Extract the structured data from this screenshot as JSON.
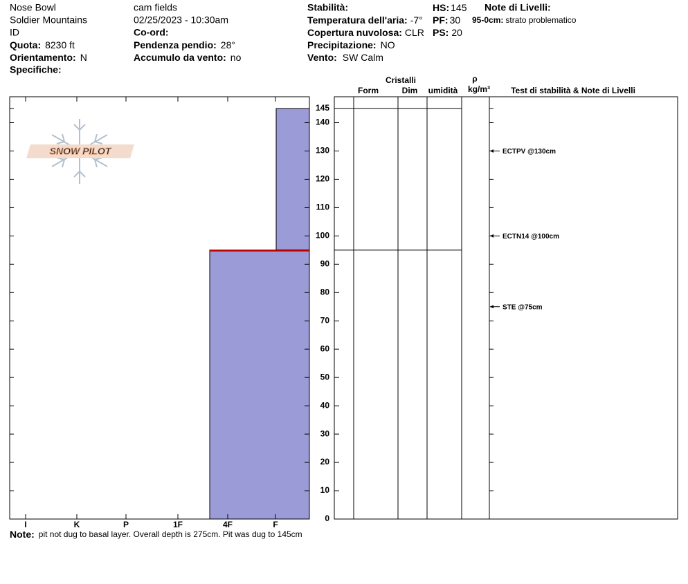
{
  "header": {
    "site": "Nose Bowl",
    "range": "Soldier Mountains",
    "state": "ID",
    "elevation": {
      "label": "Quota:",
      "value": "8230 ft"
    },
    "aspect": {
      "label": "Orientamento:",
      "value": "N"
    },
    "specifics": {
      "label": "Specifiche:"
    },
    "observer": "cam fields",
    "datetime": "02/25/2023 - 10:30am",
    "coords": {
      "label": "Co-ord:"
    },
    "slope": {
      "label": "Pendenza pendio:",
      "value": "28°"
    },
    "wind_loading": {
      "label": "Accumulo da vento:",
      "value": "no"
    },
    "stability": {
      "label": "Stabilità:"
    },
    "air_temp": {
      "label": "Temperatura dell'aria:",
      "value": "-7°"
    },
    "sky": {
      "label": "Copertura nuvolosa:",
      "value": "CLR"
    },
    "precip": {
      "label": "Precipitazione:",
      "value": "NO"
    },
    "wind": {
      "label": "Vento:",
      "value": "SW Calm"
    },
    "hs": {
      "label": "HS:",
      "value": "145"
    },
    "pf": {
      "label": "PF:",
      "value": "30"
    },
    "ps": {
      "label": "PS:",
      "value": "20"
    },
    "layer_notes": {
      "title": "Note di Livelli:",
      "items": [
        {
          "range": "95-0cm:",
          "text": "strato problematico"
        }
      ]
    }
  },
  "logo": "SNOW PILOT",
  "note": {
    "label": "Note:",
    "text": "pit not dug to basal layer. Overall depth is 275cm. Pit was dug to 145cm"
  },
  "table_headers": {
    "crystals": "Cristalli",
    "form": "Form",
    "size": "Dim",
    "moisture": "umidità",
    "density": "ρ",
    "density_unit": "kg/m³",
    "tests": "Test di stabilità & Note di Livelli"
  },
  "profile": {
    "ylim": [
      0,
      145
    ],
    "yticks": [
      0,
      10,
      20,
      30,
      40,
      50,
      60,
      70,
      80,
      90,
      100,
      110,
      120,
      130,
      140,
      145
    ],
    "hardness_scale": [
      "I",
      "K",
      "P",
      "1F",
      "4F",
      "F"
    ],
    "layer_color": "#9b9bd7",
    "problem_color": "#c00000",
    "layers": [
      {
        "top": 145,
        "bottom": 95,
        "hardness": "F"
      },
      {
        "top": 95,
        "bottom": 0,
        "hardness": "4F"
      }
    ],
    "problem_depth": 95,
    "tests": [
      {
        "label": "ECTPV @130cm",
        "depth": 130
      },
      {
        "label": "ECTN14 @100cm",
        "depth": 100
      },
      {
        "label": "STE @75cm",
        "depth": 75
      }
    ]
  }
}
